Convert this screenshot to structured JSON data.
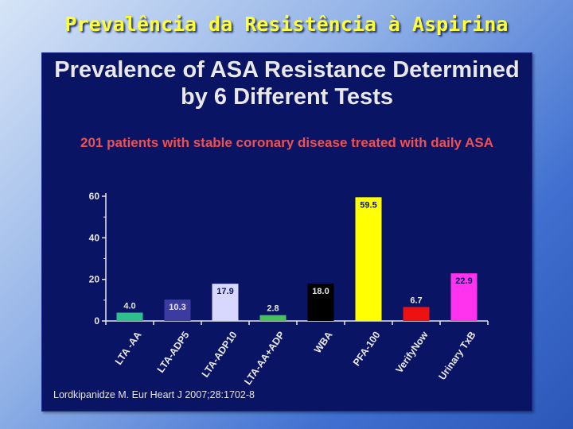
{
  "slide": {
    "title": "Prevalência da Resistência à Aspirina"
  },
  "chart_data": {
    "type": "bar",
    "title": "Prevalence of ASA Resistance Determined by 6 Different Tests",
    "subtitle": "201 patients with stable coronary disease treated with daily ASA",
    "categories": [
      "LTA -AA",
      "LTA-ADP5",
      "LTA-ADP10",
      "LTA-AA+ADP",
      "WBA",
      "PFA-100",
      "VerifyNow",
      "Urinary TxB"
    ],
    "values": [
      4.0,
      10.3,
      17.9,
      2.8,
      18.0,
      59.5,
      6.7,
      22.9
    ],
    "value_labels": [
      "4.0",
      "10.3",
      "17.9",
      "2.8",
      "18.0",
      "59.5",
      "6.7",
      "22.9"
    ],
    "colors": [
      "#2fbf8f",
      "#3b3ba0",
      "#d8d8ff",
      "#47c25a",
      "#000000",
      "#ffff00",
      "#ee1111",
      "#ff33ee"
    ],
    "label_colors": [
      "#e8e8e8",
      "#e8e8e8",
      "#0a1464",
      "#e8e8e8",
      "#e8e8e8",
      "#0a1464",
      "#e8e8e8",
      "#0a1464"
    ],
    "yticks": [
      "0",
      "20",
      "40",
      "60"
    ],
    "ylim": [
      0,
      60
    ],
    "xlabel": "",
    "ylabel": "",
    "grid": false,
    "legend": "none"
  },
  "citation": "Lordkipanidze M. Eur Heart J 2007;28:1702-8"
}
